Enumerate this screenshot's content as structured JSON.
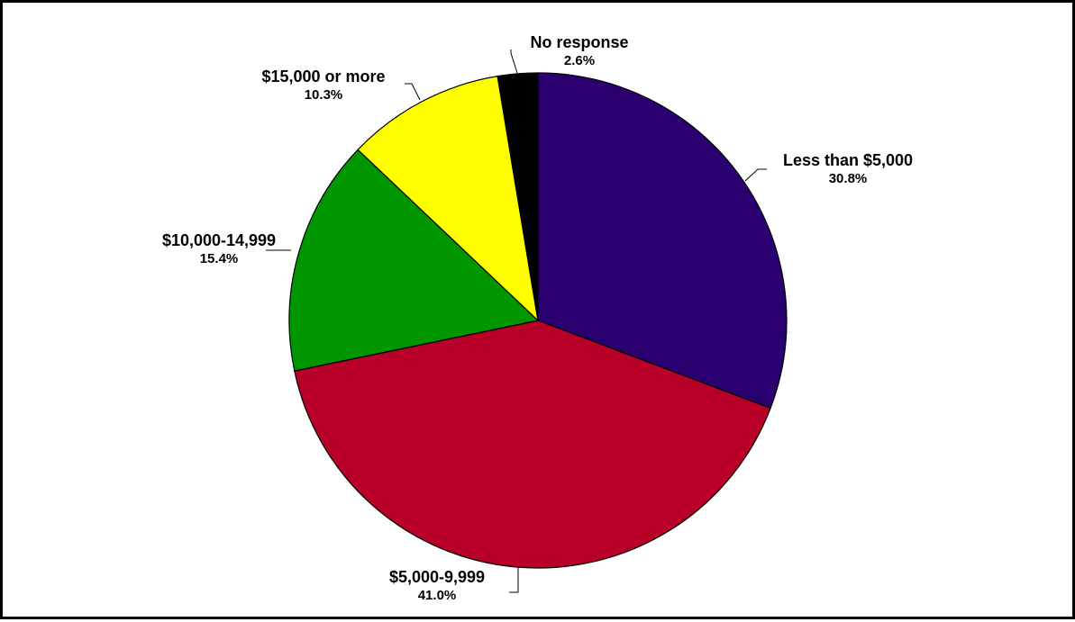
{
  "chart_data": {
    "type": "pie",
    "title": "",
    "start_angle_deg": 0,
    "direction": "clockwise",
    "slices": [
      {
        "label": "Less than $5,000",
        "percent_label": "30.8%",
        "value": 30.8,
        "color": "#2a0070"
      },
      {
        "label": "$5,000-9,999",
        "percent_label": "41.0%",
        "value": 41.0,
        "color": "#b80028"
      },
      {
        "label": "$10,000-14,999",
        "percent_label": "15.4%",
        "value": 15.4,
        "color": "#009600"
      },
      {
        "label": "$15,000 or more",
        "percent_label": "10.3%",
        "value": 10.3,
        "color": "#ffff00"
      },
      {
        "label": "No response",
        "percent_label": "2.6%",
        "value": 2.6,
        "color": "#000000"
      }
    ]
  }
}
